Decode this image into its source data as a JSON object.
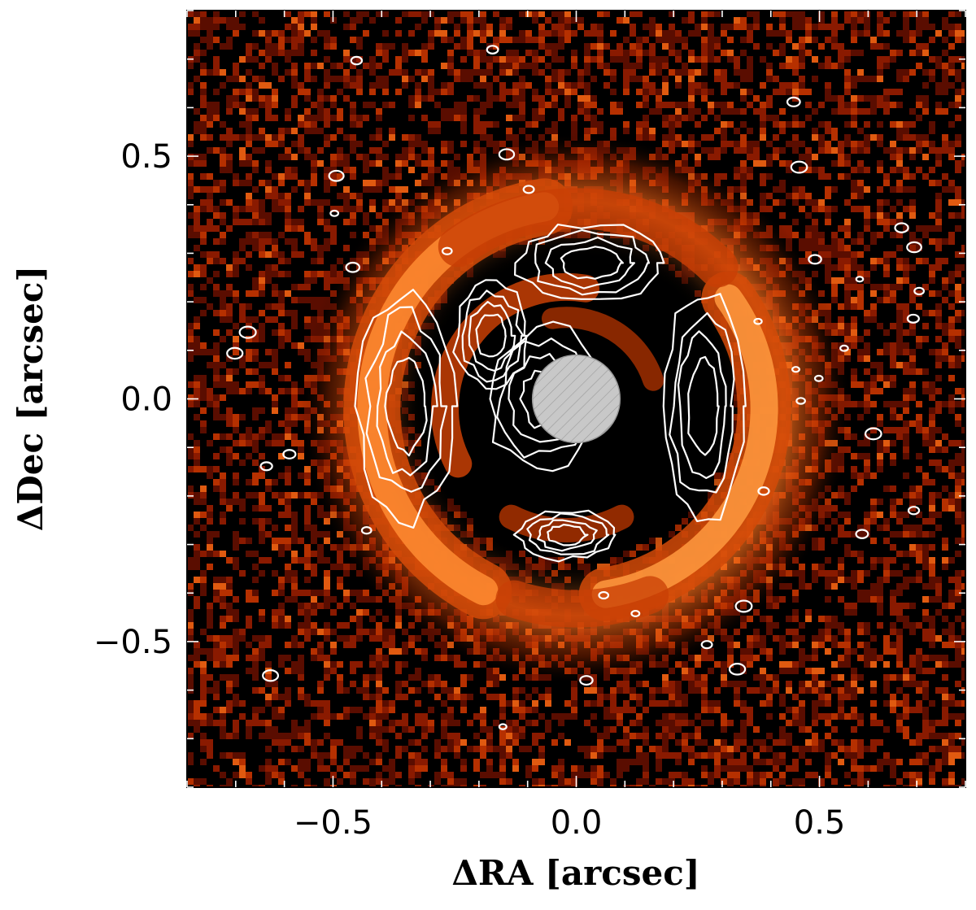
{
  "chart_data": {
    "type": "heatmap",
    "title": "",
    "xlabel": "ΔRA [arcsec]",
    "ylabel": "ΔDec [arcsec]",
    "xlim": [
      -0.8,
      0.8
    ],
    "ylim": [
      -0.8,
      0.8
    ],
    "x_ticks": [
      {
        "value": -0.5,
        "label": "−0.5"
      },
      {
        "value": 0.0,
        "label": "0.0"
      },
      {
        "value": 0.5,
        "label": "0.5"
      }
    ],
    "y_ticks": [
      {
        "value": 0.5,
        "label": "0.5"
      },
      {
        "value": 0.0,
        "label": "0.0"
      },
      {
        "value": -0.5,
        "label": "−0.5"
      }
    ],
    "minor_tick_step": 0.1,
    "colormap": "black-red-orange (hot)",
    "colors": {
      "background": "#000000",
      "noise": "#8a1a00",
      "disk": "#ff9a40",
      "contour": "#ffffff",
      "mask": "#c8c8c8"
    },
    "coronagraph_mask": {
      "center": [
        0.0,
        0.0
      ],
      "radius": 0.09
    },
    "features": [
      {
        "name": "outer ring",
        "center": [
          0.0,
          -0.02
        ],
        "radius": 0.42,
        "ra_extent": [
          -0.45,
          0.35
        ],
        "dec_extent": [
          -0.42,
          0.42
        ]
      },
      {
        "name": "inner ring",
        "center": [
          -0.02,
          -0.02
        ],
        "radius": 0.25,
        "ra_extent": [
          -0.26,
          0.26
        ],
        "dec_extent": [
          -0.33,
          0.22
        ]
      },
      {
        "name": "dark gap",
        "center": [
          0.0,
          0.0
        ],
        "radius": 0.33
      }
    ],
    "contour_regions": [
      {
        "name": "east outer arc",
        "ra_range": [
          -0.45,
          -0.25
        ],
        "dec_range": [
          -0.25,
          0.22
        ]
      },
      {
        "name": "west outer arc",
        "ra_range": [
          0.18,
          0.34
        ],
        "dec_range": [
          -0.25,
          0.22
        ]
      },
      {
        "name": "north outer arc",
        "ra_range": [
          -0.12,
          0.18
        ],
        "dec_range": [
          0.2,
          0.36
        ]
      },
      {
        "name": "north inner arc",
        "ra_range": [
          -0.25,
          -0.1
        ],
        "dec_range": [
          0.02,
          0.24
        ]
      },
      {
        "name": "south inner arc",
        "ra_range": [
          -0.12,
          0.08
        ],
        "dec_range": [
          -0.33,
          -0.23
        ]
      },
      {
        "name": "central knots",
        "ra_range": [
          -0.18,
          0.05
        ],
        "dec_range": [
          -0.15,
          0.15
        ]
      }
    ]
  }
}
